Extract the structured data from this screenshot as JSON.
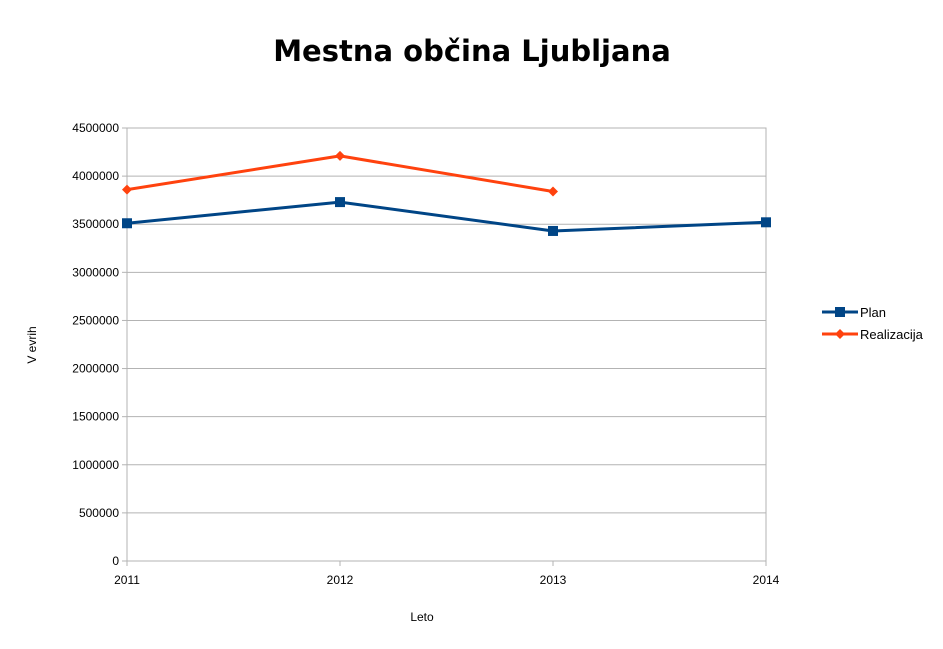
{
  "chart_data": {
    "type": "line",
    "title": "Mestna občina Ljubljana",
    "xlabel": "Leto",
    "ylabel": "V evrih",
    "x": [
      "2011",
      "2012",
      "2013",
      "2014"
    ],
    "y_ticks": [
      "0",
      "500000",
      "1000000",
      "1500000",
      "2000000",
      "2500000",
      "3000000",
      "3500000",
      "4000000",
      "4500000"
    ],
    "ylim": [
      0,
      4500000
    ],
    "grid": true,
    "legend_position": "right",
    "series": [
      {
        "name": "Plan",
        "values": [
          3510000,
          3730000,
          3430000,
          3520000
        ],
        "color": "#004586",
        "marker": "square"
      },
      {
        "name": "Realizacija",
        "values": [
          3860000,
          4210000,
          3840000,
          null
        ],
        "color": "#ff420e",
        "marker": "diamond"
      }
    ]
  }
}
